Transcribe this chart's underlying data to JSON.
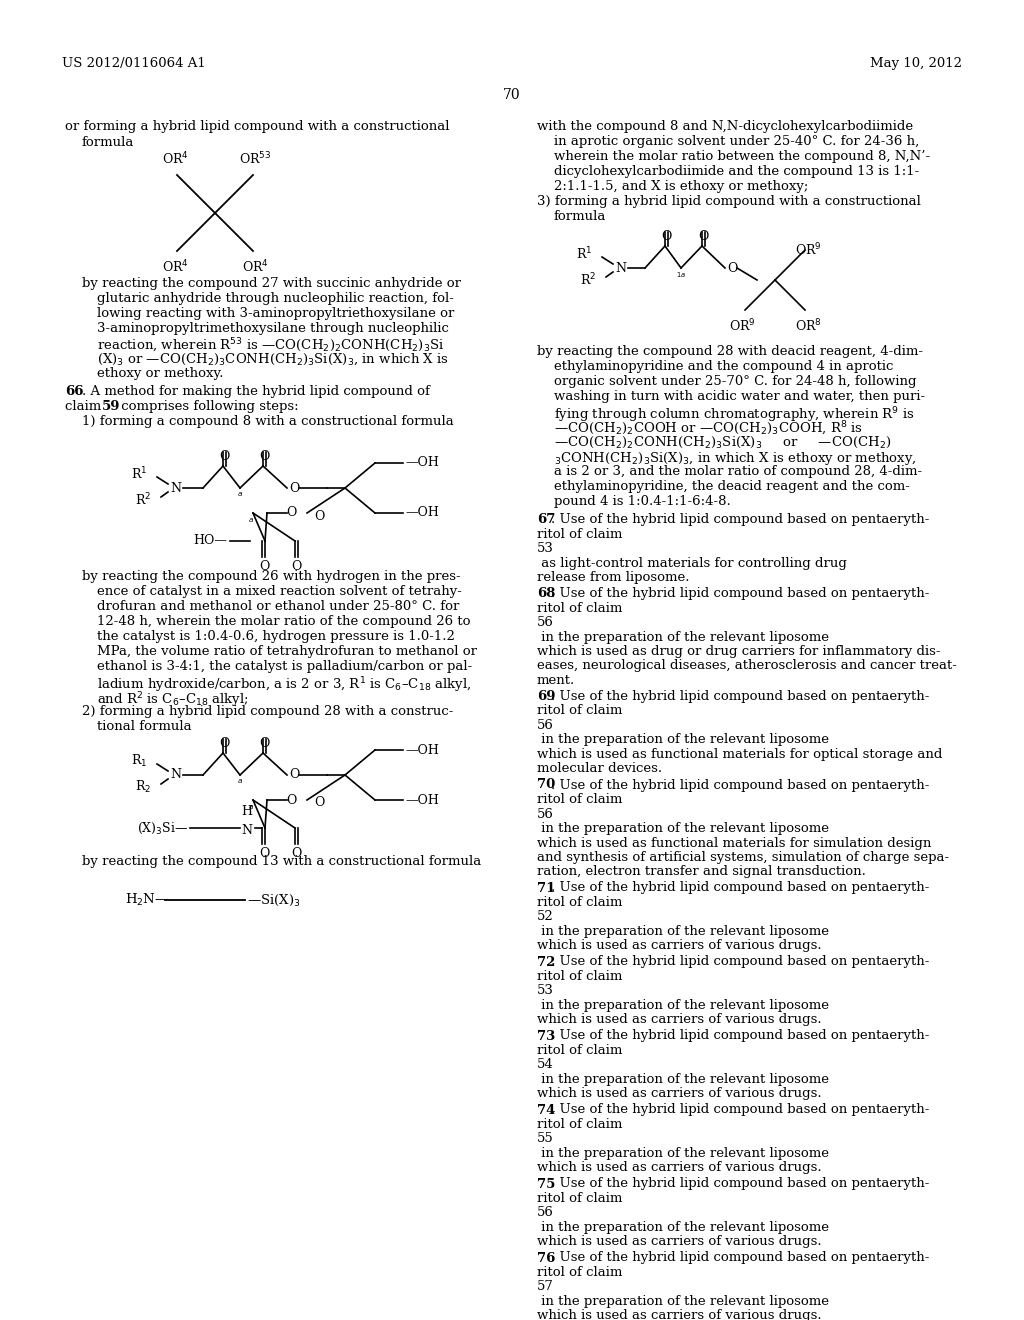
{
  "background_color": "#ffffff",
  "page_number": "70",
  "header_left": "US 2012/0116064 A1",
  "header_right": "May 10, 2012"
}
